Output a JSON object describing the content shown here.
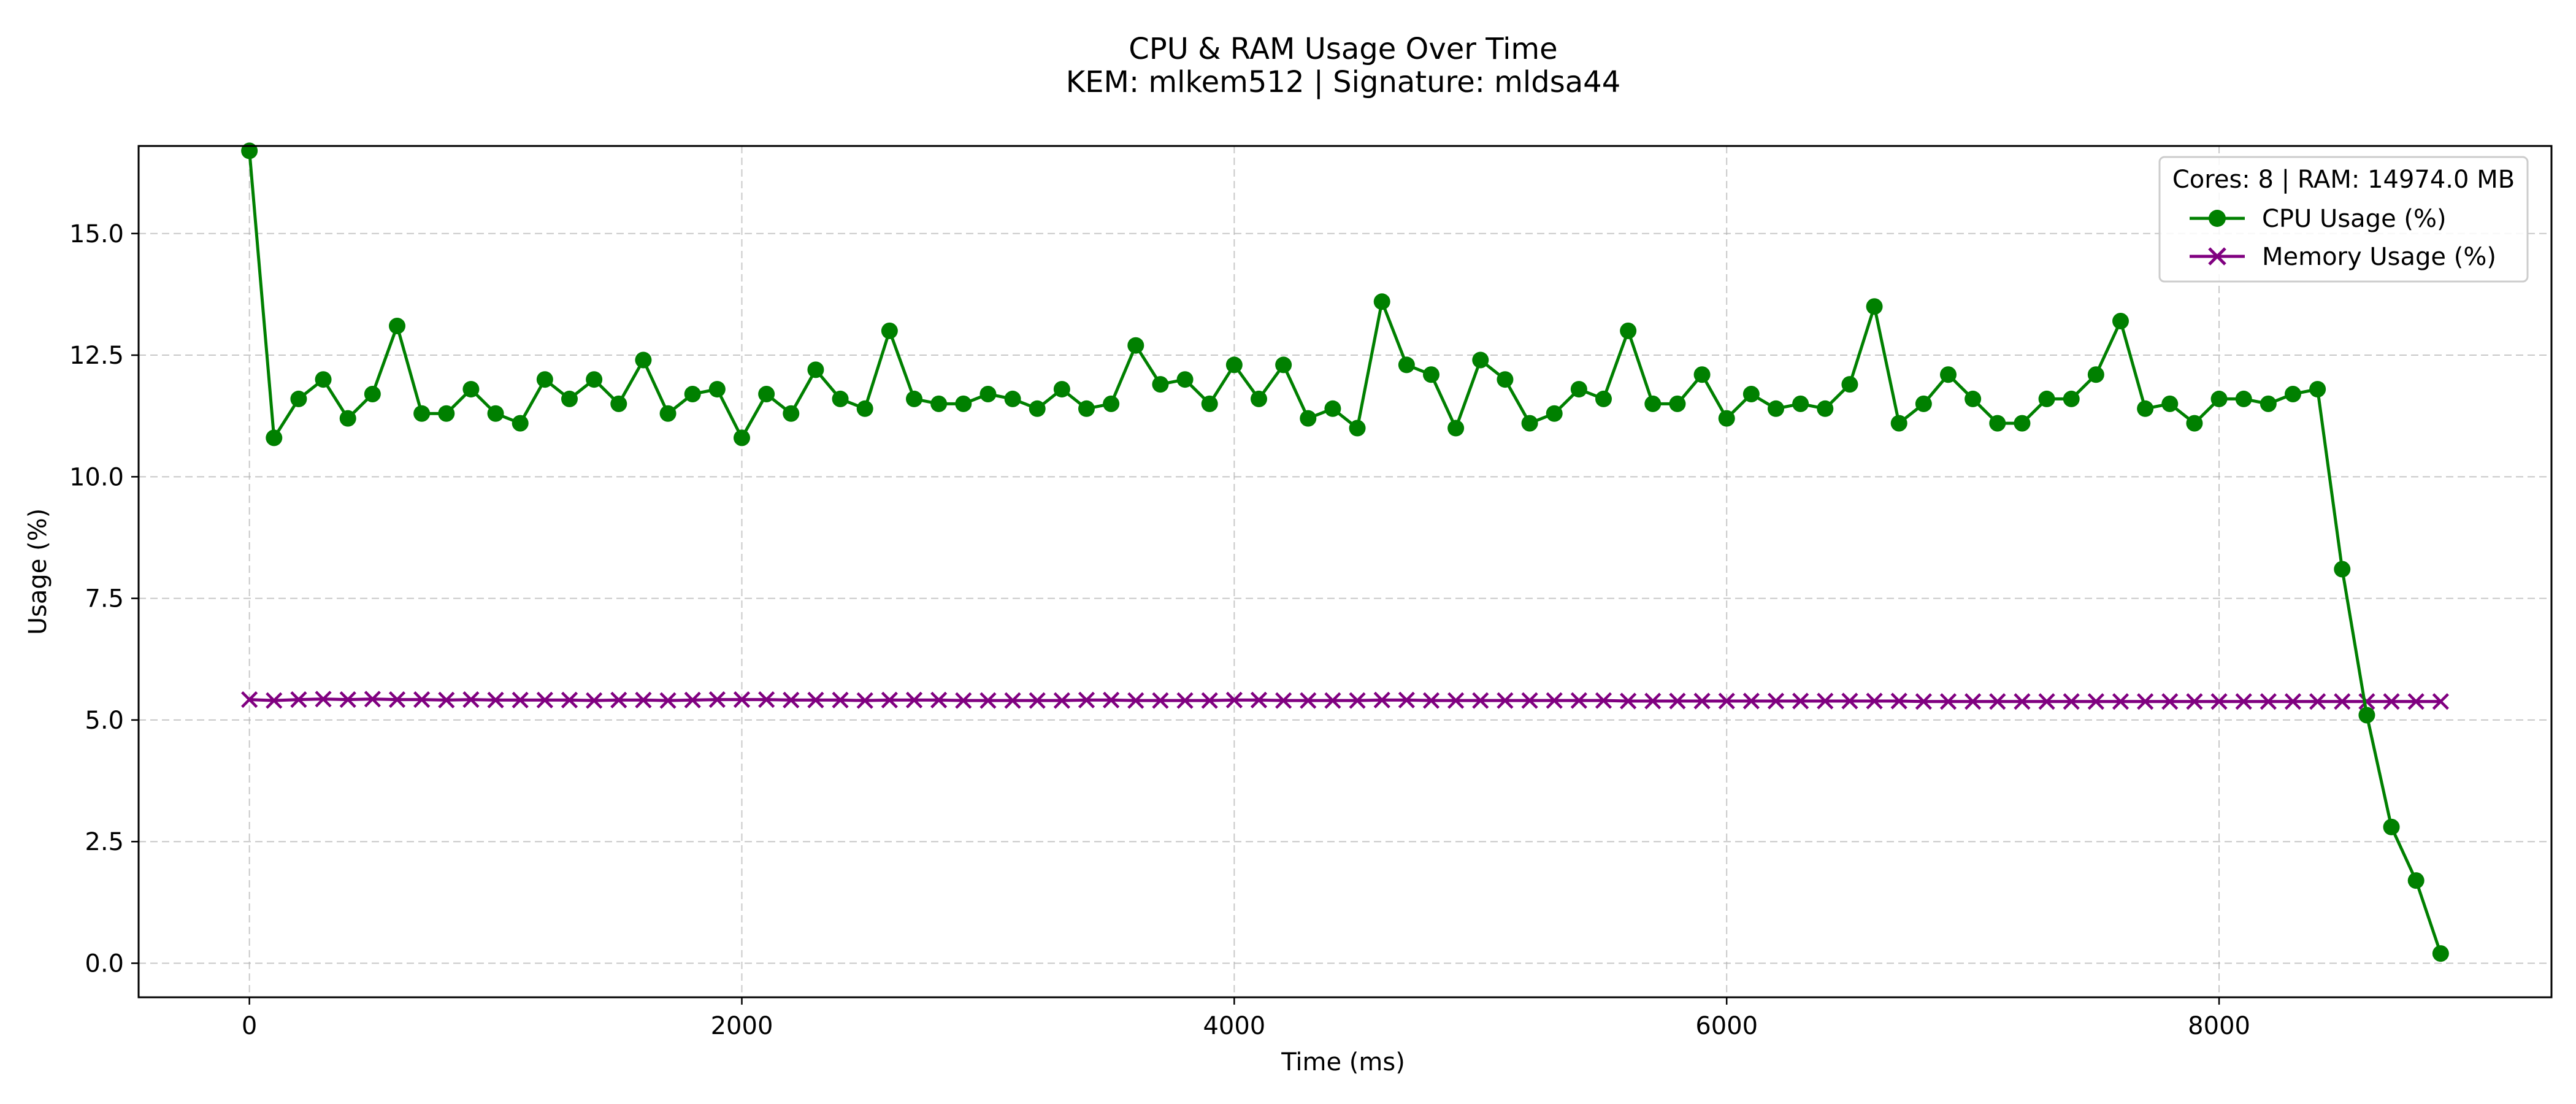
{
  "chart_data": {
    "type": "line",
    "title": "CPU & RAM Usage Over Time",
    "subtitle": "KEM: mlkem512 | Signature: mldsa44",
    "xlabel": "Time (ms)",
    "ylabel": "Usage (%)",
    "xlim": [
      -450,
      9350
    ],
    "ylim": [
      -0.7,
      16.8
    ],
    "x_ticks": [
      0,
      2000,
      4000,
      6000,
      8000
    ],
    "y_ticks": [
      0.0,
      2.5,
      5.0,
      7.5,
      10.0,
      12.5,
      15.0
    ],
    "grid": true,
    "legend_position": "top-right",
    "legend_title": "Cores: 8 | RAM: 14974.0 MB",
    "x": [
      0,
      100,
      200,
      300,
      400,
      500,
      600,
      700,
      800,
      900,
      1000,
      1100,
      1200,
      1300,
      1400,
      1500,
      1600,
      1700,
      1800,
      1900,
      2000,
      2100,
      2200,
      2300,
      2400,
      2500,
      2600,
      2700,
      2800,
      2900,
      3000,
      3100,
      3200,
      3300,
      3400,
      3500,
      3600,
      3700,
      3800,
      3900,
      4000,
      4100,
      4200,
      4300,
      4400,
      4500,
      4600,
      4700,
      4800,
      4900,
      5000,
      5100,
      5200,
      5300,
      5400,
      5500,
      5600,
      5700,
      5800,
      5900,
      6000,
      6100,
      6200,
      6300,
      6400,
      6500,
      6600,
      6700,
      6800,
      6900,
      7000,
      7100,
      7200,
      7300,
      7400,
      7500,
      7600,
      7700,
      7800,
      7900,
      8000,
      8100,
      8200,
      8300,
      8400,
      8500,
      8600,
      8700,
      8800,
      8900
    ],
    "series": [
      {
        "name": "CPU Usage (%)",
        "color": "#008000",
        "marker": "circle",
        "values": [
          16.7,
          10.8,
          11.6,
          12.0,
          11.2,
          11.7,
          13.1,
          11.3,
          11.3,
          11.8,
          11.3,
          11.1,
          12.0,
          11.6,
          12.0,
          11.5,
          12.4,
          11.3,
          11.7,
          11.8,
          10.8,
          11.7,
          11.3,
          12.2,
          11.6,
          11.4,
          13.0,
          11.6,
          11.5,
          11.5,
          11.7,
          11.6,
          11.4,
          11.8,
          11.4,
          11.5,
          12.7,
          11.9,
          12.0,
          11.5,
          12.3,
          11.6,
          12.3,
          11.2,
          11.4,
          11.0,
          13.6,
          12.3,
          12.1,
          11.0,
          12.4,
          12.0,
          11.1,
          11.3,
          11.8,
          11.6,
          13.0,
          11.5,
          11.5,
          12.1,
          11.2,
          11.7,
          11.4,
          11.5,
          11.4,
          11.9,
          13.5,
          11.1,
          11.5,
          12.1,
          11.6,
          11.1,
          11.1,
          11.6,
          11.6,
          12.1,
          13.2,
          11.4,
          11.5,
          11.1,
          11.6,
          11.6,
          11.5,
          11.7,
          11.8,
          8.1,
          5.1,
          2.8,
          1.7,
          0.2
        ]
      },
      {
        "name": "Memory Usage (%)",
        "color": "#800080",
        "marker": "x",
        "values": [
          5.42,
          5.4,
          5.42,
          5.43,
          5.42,
          5.43,
          5.42,
          5.42,
          5.41,
          5.42,
          5.41,
          5.41,
          5.41,
          5.41,
          5.4,
          5.41,
          5.41,
          5.4,
          5.41,
          5.42,
          5.42,
          5.42,
          5.41,
          5.41,
          5.41,
          5.4,
          5.41,
          5.41,
          5.41,
          5.4,
          5.4,
          5.4,
          5.4,
          5.4,
          5.41,
          5.41,
          5.4,
          5.4,
          5.4,
          5.4,
          5.41,
          5.41,
          5.4,
          5.4,
          5.4,
          5.4,
          5.41,
          5.41,
          5.4,
          5.4,
          5.4,
          5.4,
          5.4,
          5.4,
          5.4,
          5.4,
          5.39,
          5.39,
          5.39,
          5.39,
          5.39,
          5.39,
          5.39,
          5.39,
          5.39,
          5.39,
          5.39,
          5.39,
          5.38,
          5.38,
          5.38,
          5.38,
          5.38,
          5.38,
          5.38,
          5.38,
          5.38,
          5.38,
          5.38,
          5.38,
          5.38,
          5.38,
          5.38,
          5.38,
          5.38,
          5.38,
          5.38,
          5.38,
          5.38,
          5.38
        ]
      }
    ]
  }
}
